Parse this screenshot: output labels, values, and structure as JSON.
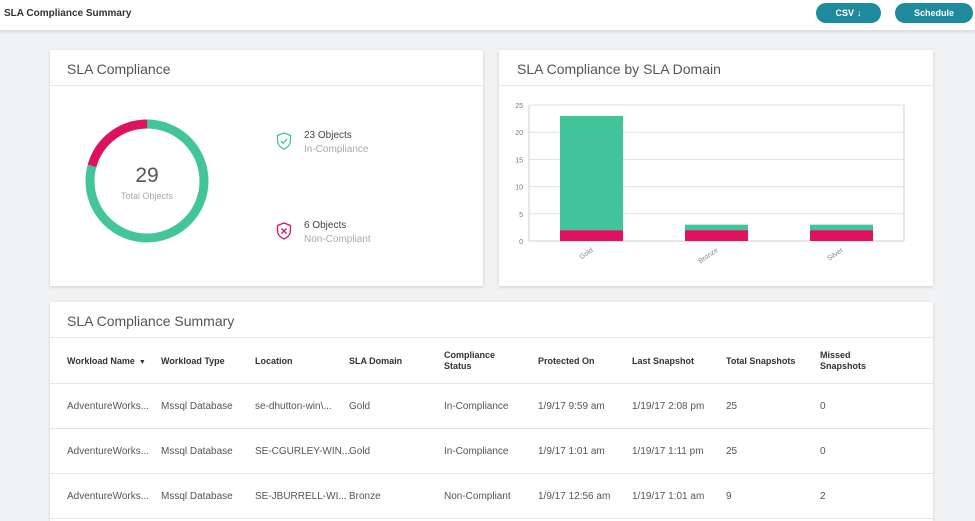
{
  "header": {
    "title": "SLA Compliance Summary",
    "csv_label": "CSV",
    "csv_icon": "download-arrow-icon",
    "schedule_label": "Schedule"
  },
  "colors": {
    "compliant": "#42c59a",
    "noncompliant": "#e0115f",
    "accent": "#1f8a9c"
  },
  "sla_compliance": {
    "title": "SLA Compliance",
    "total": "29",
    "total_label": "Total Objects",
    "compliant_count": 23,
    "noncompliant_count": 6,
    "in_compliance": {
      "count_text": "23 Objects",
      "status": "In-Compliance",
      "icon": "shield-check-icon"
    },
    "non_compliant": {
      "count_text": "6 Objects",
      "status": "Non-Compliant",
      "icon": "shield-x-icon"
    }
  },
  "chart_data": {
    "type": "bar",
    "title": "SLA Compliance by SLA Domain",
    "stacked": true,
    "categories": [
      "Gold",
      "Bronze",
      "Silver"
    ],
    "series": [
      {
        "values": [
          2,
          2,
          2
        ],
        "color": "#e0115f"
      },
      {
        "values": [
          21,
          1,
          1
        ],
        "color": "#42c59a"
      }
    ],
    "yticks": [
      0,
      5,
      10,
      15,
      20,
      25
    ],
    "ylim": [
      0,
      25
    ],
    "grid": true,
    "xlabel": "",
    "ylabel": ""
  },
  "summary": {
    "title": "SLA Compliance Summary",
    "columns": [
      {
        "line1": "Workload Name",
        "line2": "",
        "sort": "desc"
      },
      {
        "line1": "Workload Type",
        "line2": ""
      },
      {
        "line1": "Location",
        "line2": ""
      },
      {
        "line1": "SLA Domain",
        "line2": ""
      },
      {
        "line1": "Compliance",
        "line2": "Status"
      },
      {
        "line1": "Protected On",
        "line2": ""
      },
      {
        "line1": "Last Snapshot",
        "line2": ""
      },
      {
        "line1": "Total Snapshots",
        "line2": ""
      },
      {
        "line1": "Missed",
        "line2": "Snapshots"
      }
    ],
    "rows": [
      [
        "AdventureWorks...",
        "Mssql Database",
        "se-dhutton-win\\...",
        "Gold",
        "In-Compliance",
        "1/9/17 9:59 am",
        "1/19/17 2:08 pm",
        "25",
        "0"
      ],
      [
        "AdventureWorks...",
        "Mssql Database",
        "SE-CGURLEY-WIN...",
        "Gold",
        "In-Compliance",
        "1/9/17 1:01 am",
        "1/19/17 1:11 pm",
        "25",
        "0"
      ],
      [
        "AdventureWorks...",
        "Mssql Database",
        "SE-JBURRELL-WI...",
        "Bronze",
        "Non-Compliant",
        "1/9/17 12:56 am",
        "1/19/17 1:01 am",
        "9",
        "2"
      ]
    ]
  }
}
